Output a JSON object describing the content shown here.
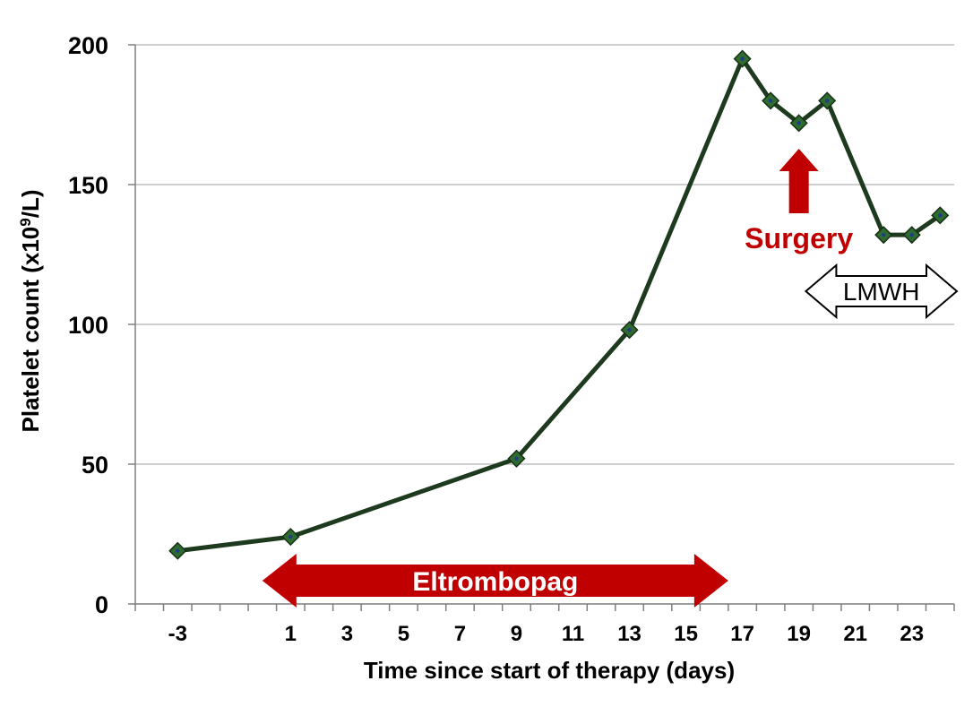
{
  "chart_data": {
    "type": "line",
    "xlabel": "Time since start of therapy (days)",
    "ylabel_prefix": "Platelet count (x10",
    "ylabel_sup": "9",
    "ylabel_suffix": "/L)",
    "ylim": [
      0,
      200
    ],
    "xlim": [
      -4,
      25
    ],
    "yticks": [
      0,
      50,
      100,
      150,
      200
    ],
    "xticks": [
      -3,
      1,
      3,
      5,
      7,
      9,
      11,
      13,
      15,
      17,
      19,
      21,
      23
    ],
    "grid": "horizontal",
    "series": [
      {
        "x": [
          -2.5,
          1.5,
          9.5,
          13.5,
          17.5,
          18.5,
          19.5,
          20.5,
          22.5,
          23.5,
          24.5
        ],
        "values": [
          19,
          24,
          52,
          98,
          195,
          180,
          172,
          180,
          132,
          132,
          139
        ]
      }
    ],
    "annotations": {
      "eltrombopag": {
        "label": "Eltrombopag",
        "from": 0.5,
        "to": 17,
        "color": "#c00000"
      },
      "surgery": {
        "label": "Surgery",
        "x": 19.5,
        "color": "#c00000"
      },
      "lmwh": {
        "label": "LMWH",
        "from": 20,
        "to": 25
      }
    },
    "colors": {
      "line": "#1e3a1e",
      "marker": "#2f6b2f",
      "marker_center": "#1f3d8a",
      "grid": "#bfbfbf"
    }
  }
}
